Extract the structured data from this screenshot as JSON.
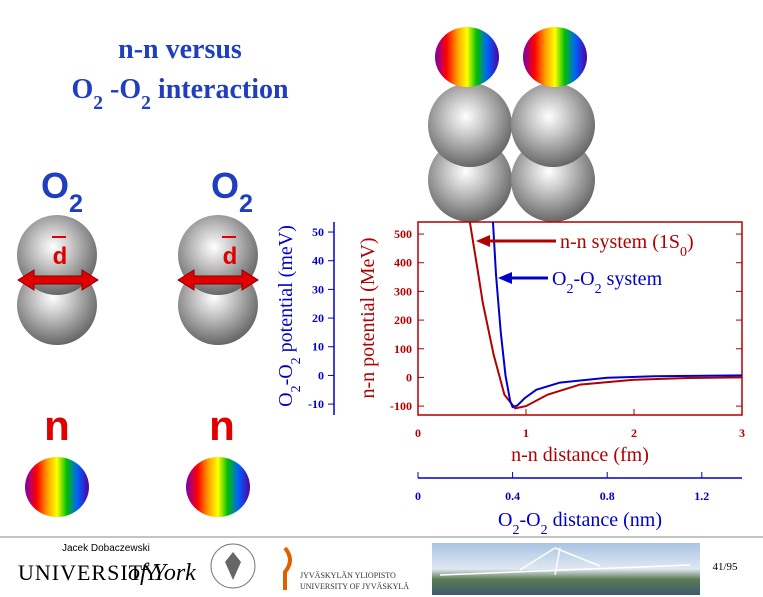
{
  "title_lines": [
    "n-n versus",
    "O2 -O2 interaction"
  ],
  "molecule_labels": [
    "O2",
    "O2"
  ],
  "neutron_labels": [
    "n",
    "n"
  ],
  "vector_labels": [
    "d",
    "d"
  ],
  "chart_data": {
    "type": "line",
    "xlabel": "n-n distance (fm)",
    "x2label": "O2-O2 distance (nm)",
    "ylabel": "n-n potential (MeV)",
    "y2label": "O2-O2 potential (meV)",
    "xlim": [
      0,
      3
    ],
    "xticks": [
      0,
      1,
      2,
      3
    ],
    "x2lim": [
      0,
      1.37
    ],
    "x2ticks": [
      0,
      0.4,
      0.8,
      1.2
    ],
    "ylim": [
      -131,
      542
    ],
    "yticks": [
      -100,
      0,
      100,
      200,
      300,
      400,
      500
    ],
    "y2lim": [
      -13.8,
      53.5
    ],
    "y2ticks": [
      -10,
      0,
      10,
      20,
      30,
      40,
      50
    ],
    "series": [
      {
        "name": "n-n system (1S0)",
        "color": "#b00000",
        "x": [
          0.48,
          0.55,
          0.6,
          0.7,
          0.8,
          0.9,
          1.0,
          1.2,
          1.5,
          2,
          2.5,
          3
        ],
        "values": [
          542,
          380,
          260,
          80,
          -60,
          -108,
          -100,
          -60,
          -25,
          -8,
          -2,
          0
        ]
      },
      {
        "name": "O2-O2 system",
        "color": "#0000cc",
        "axis": "y2",
        "x_axis": "x2",
        "x": [
          0.317,
          0.33,
          0.35,
          0.37,
          0.39,
          0.4,
          0.42,
          0.45,
          0.5,
          0.6,
          0.8,
          1.0,
          1.37
        ],
        "values": [
          53.5,
          35,
          15,
          0,
          -9,
          -11,
          -10.5,
          -8,
          -5,
          -2.5,
          -0.8,
          -0.3,
          0
        ]
      }
    ]
  },
  "footer": {
    "author": "Jacek Dobaczewski",
    "york_main": "UNIVERSITY",
    "york_of": "of York",
    "jyu_fi": "JYVÄSKYLÄN YLIOPISTO",
    "jyu_en": "UNIVERSITY OF JYVÄSKYLÄ",
    "page": "41/95"
  }
}
